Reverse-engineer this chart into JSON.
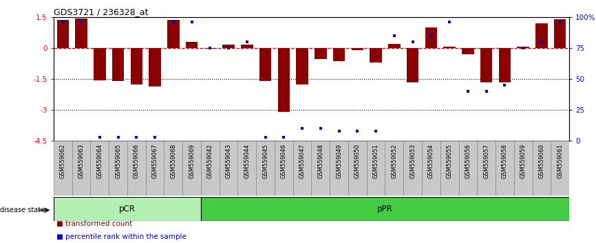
{
  "title": "GDS3721 / 236328_at",
  "samples": [
    "GSM559062",
    "GSM559063",
    "GSM559064",
    "GSM559065",
    "GSM559066",
    "GSM559067",
    "GSM559068",
    "GSM559069",
    "GSM559042",
    "GSM559043",
    "GSM559044",
    "GSM559045",
    "GSM559046",
    "GSM559047",
    "GSM559048",
    "GSM559049",
    "GSM559050",
    "GSM559051",
    "GSM559052",
    "GSM559053",
    "GSM559054",
    "GSM559055",
    "GSM559056",
    "GSM559057",
    "GSM559058",
    "GSM559059",
    "GSM559060",
    "GSM559061"
  ],
  "transformed_count": [
    1.35,
    1.42,
    -1.55,
    -1.6,
    -1.75,
    -1.85,
    1.35,
    0.28,
    -0.05,
    0.15,
    0.15,
    -1.6,
    -3.1,
    -1.75,
    -0.55,
    -0.65,
    -0.1,
    -0.7,
    0.2,
    -1.65,
    1.0,
    0.05,
    -0.3,
    -1.65,
    -1.65,
    0.05,
    1.2,
    1.4
  ],
  "percentile_rank": [
    96,
    96,
    3,
    3,
    3,
    3,
    96,
    96,
    75,
    75,
    80,
    3,
    3,
    10,
    10,
    8,
    8,
    8,
    85,
    80,
    85,
    96,
    40,
    40,
    45,
    75,
    80,
    96
  ],
  "disease_groups": [
    {
      "label": "pCR",
      "start": 0,
      "end": 8,
      "color": "#b2f0b2"
    },
    {
      "label": "pPR",
      "start": 8,
      "end": 28,
      "color": "#44cc44"
    }
  ],
  "ylim": [
    -4.5,
    1.5
  ],
  "yticks_left": [
    -4.5,
    -3.0,
    -1.5,
    0.0,
    1.5
  ],
  "ytick_left_labels": [
    "-4.5",
    "-3",
    "-1.5",
    "0",
    "1.5"
  ],
  "yticks_right_vals": [
    0,
    25,
    50,
    75,
    100
  ],
  "bar_color": "#8B0000",
  "dot_color": "#0000cc",
  "zero_line_color": "#cc0000",
  "grid_color": "#000000",
  "bg_color": "#ffffff",
  "xtick_bg": "#c8c8c8",
  "xtick_edge": "#888888"
}
